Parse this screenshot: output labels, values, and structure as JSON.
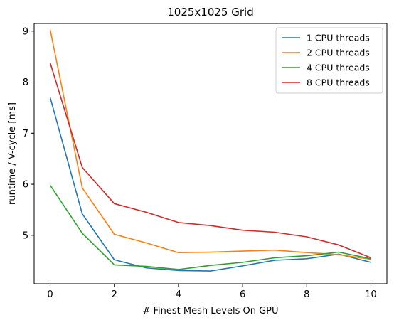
{
  "colors": {
    "series": [
      "#1f77b4",
      "#ff7f0e",
      "#2ca02c",
      "#d62728"
    ],
    "axes": "#000000",
    "background": "#ffffff",
    "legend_border": "#cccccc"
  },
  "chart_data": {
    "type": "line",
    "title": "1025x1025 Grid",
    "xlabel": "# Finest Mesh Levels On GPU",
    "ylabel": "runtime / V-cycle [ms]",
    "xlim": [
      -0.5,
      10.5
    ],
    "ylim": [
      4.05,
      9.15
    ],
    "xticks": [
      0,
      2,
      4,
      6,
      8,
      10
    ],
    "yticks": [
      5,
      6,
      7,
      8,
      9
    ],
    "grid": false,
    "legend_position": "top-right",
    "x": [
      0,
      1,
      2,
      3,
      4,
      5,
      6,
      7,
      8,
      9,
      10
    ],
    "series": [
      {
        "name": "1 CPU threads",
        "values": [
          7.7,
          5.42,
          4.52,
          4.36,
          4.31,
          4.3,
          4.4,
          4.51,
          4.54,
          4.63,
          4.47
        ]
      },
      {
        "name": "2 CPU threads",
        "values": [
          9.03,
          5.93,
          5.02,
          4.85,
          4.66,
          4.67,
          4.69,
          4.71,
          4.66,
          4.62,
          4.53
        ]
      },
      {
        "name": "4 CPU threads",
        "values": [
          5.98,
          5.04,
          4.42,
          4.39,
          4.33,
          4.41,
          4.47,
          4.56,
          4.6,
          4.67,
          4.54
        ]
      },
      {
        "name": "8 CPU threads",
        "values": [
          8.38,
          6.33,
          5.62,
          5.45,
          5.25,
          5.19,
          5.1,
          5.06,
          4.97,
          4.81,
          4.56
        ]
      }
    ]
  }
}
